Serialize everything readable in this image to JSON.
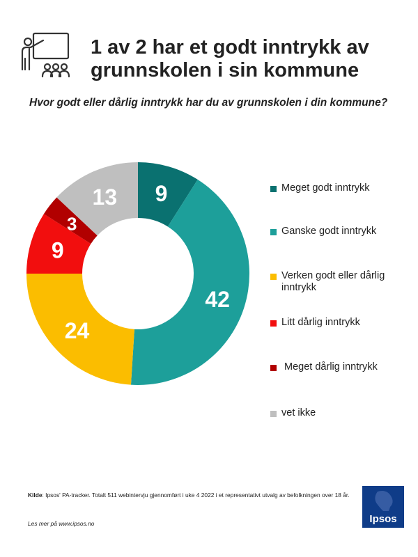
{
  "header": {
    "title": "1 av 2 har et godt inntrykk av grunnskolen i sin kommune",
    "icon": "teacher-presentation-icon"
  },
  "chart_data": {
    "type": "pie",
    "subtitle": "Hvor godt eller dårlig inntrykk har du av grunnskolen i din kommune?",
    "categories": [
      "Meget godt inntrykk",
      "Ganske godt inntrykk",
      "Verken godt eller dårlig inntrykk",
      "Litt dårlig inntrykk",
      "Meget dårlig inntrykk",
      "vet ikke"
    ],
    "values": [
      9,
      42,
      24,
      9,
      3,
      13
    ],
    "colors": [
      "#0a7170",
      "#1d9f9a",
      "#fbbd00",
      "#f20e0e",
      "#b10000",
      "#bfbfbf"
    ],
    "label_color": "#ffffff",
    "legend_position": "right"
  },
  "legend": {
    "items": [
      {
        "label": "Meget godt inntrykk"
      },
      {
        "label": "Ganske godt inntrykk"
      },
      {
        "label": "Verken godt eller dårlig inntrykk"
      },
      {
        "label": "Litt dårlig inntrykk"
      },
      {
        "label": " Meget dårlig inntrykk"
      },
      {
        "label": "vet ikke"
      }
    ]
  },
  "footer": {
    "source_label": "Kilde",
    "source_text": ": Ipsos' PA-tracker. Totalt 511 webintervju gjennomført i uke 4 2022 i et representativt utvalg av befolkningen over 18 år.",
    "read_more": "Les mer på www.ipsos.no",
    "logo_text": "Ipsos",
    "logo_color": "#0f3c88"
  }
}
